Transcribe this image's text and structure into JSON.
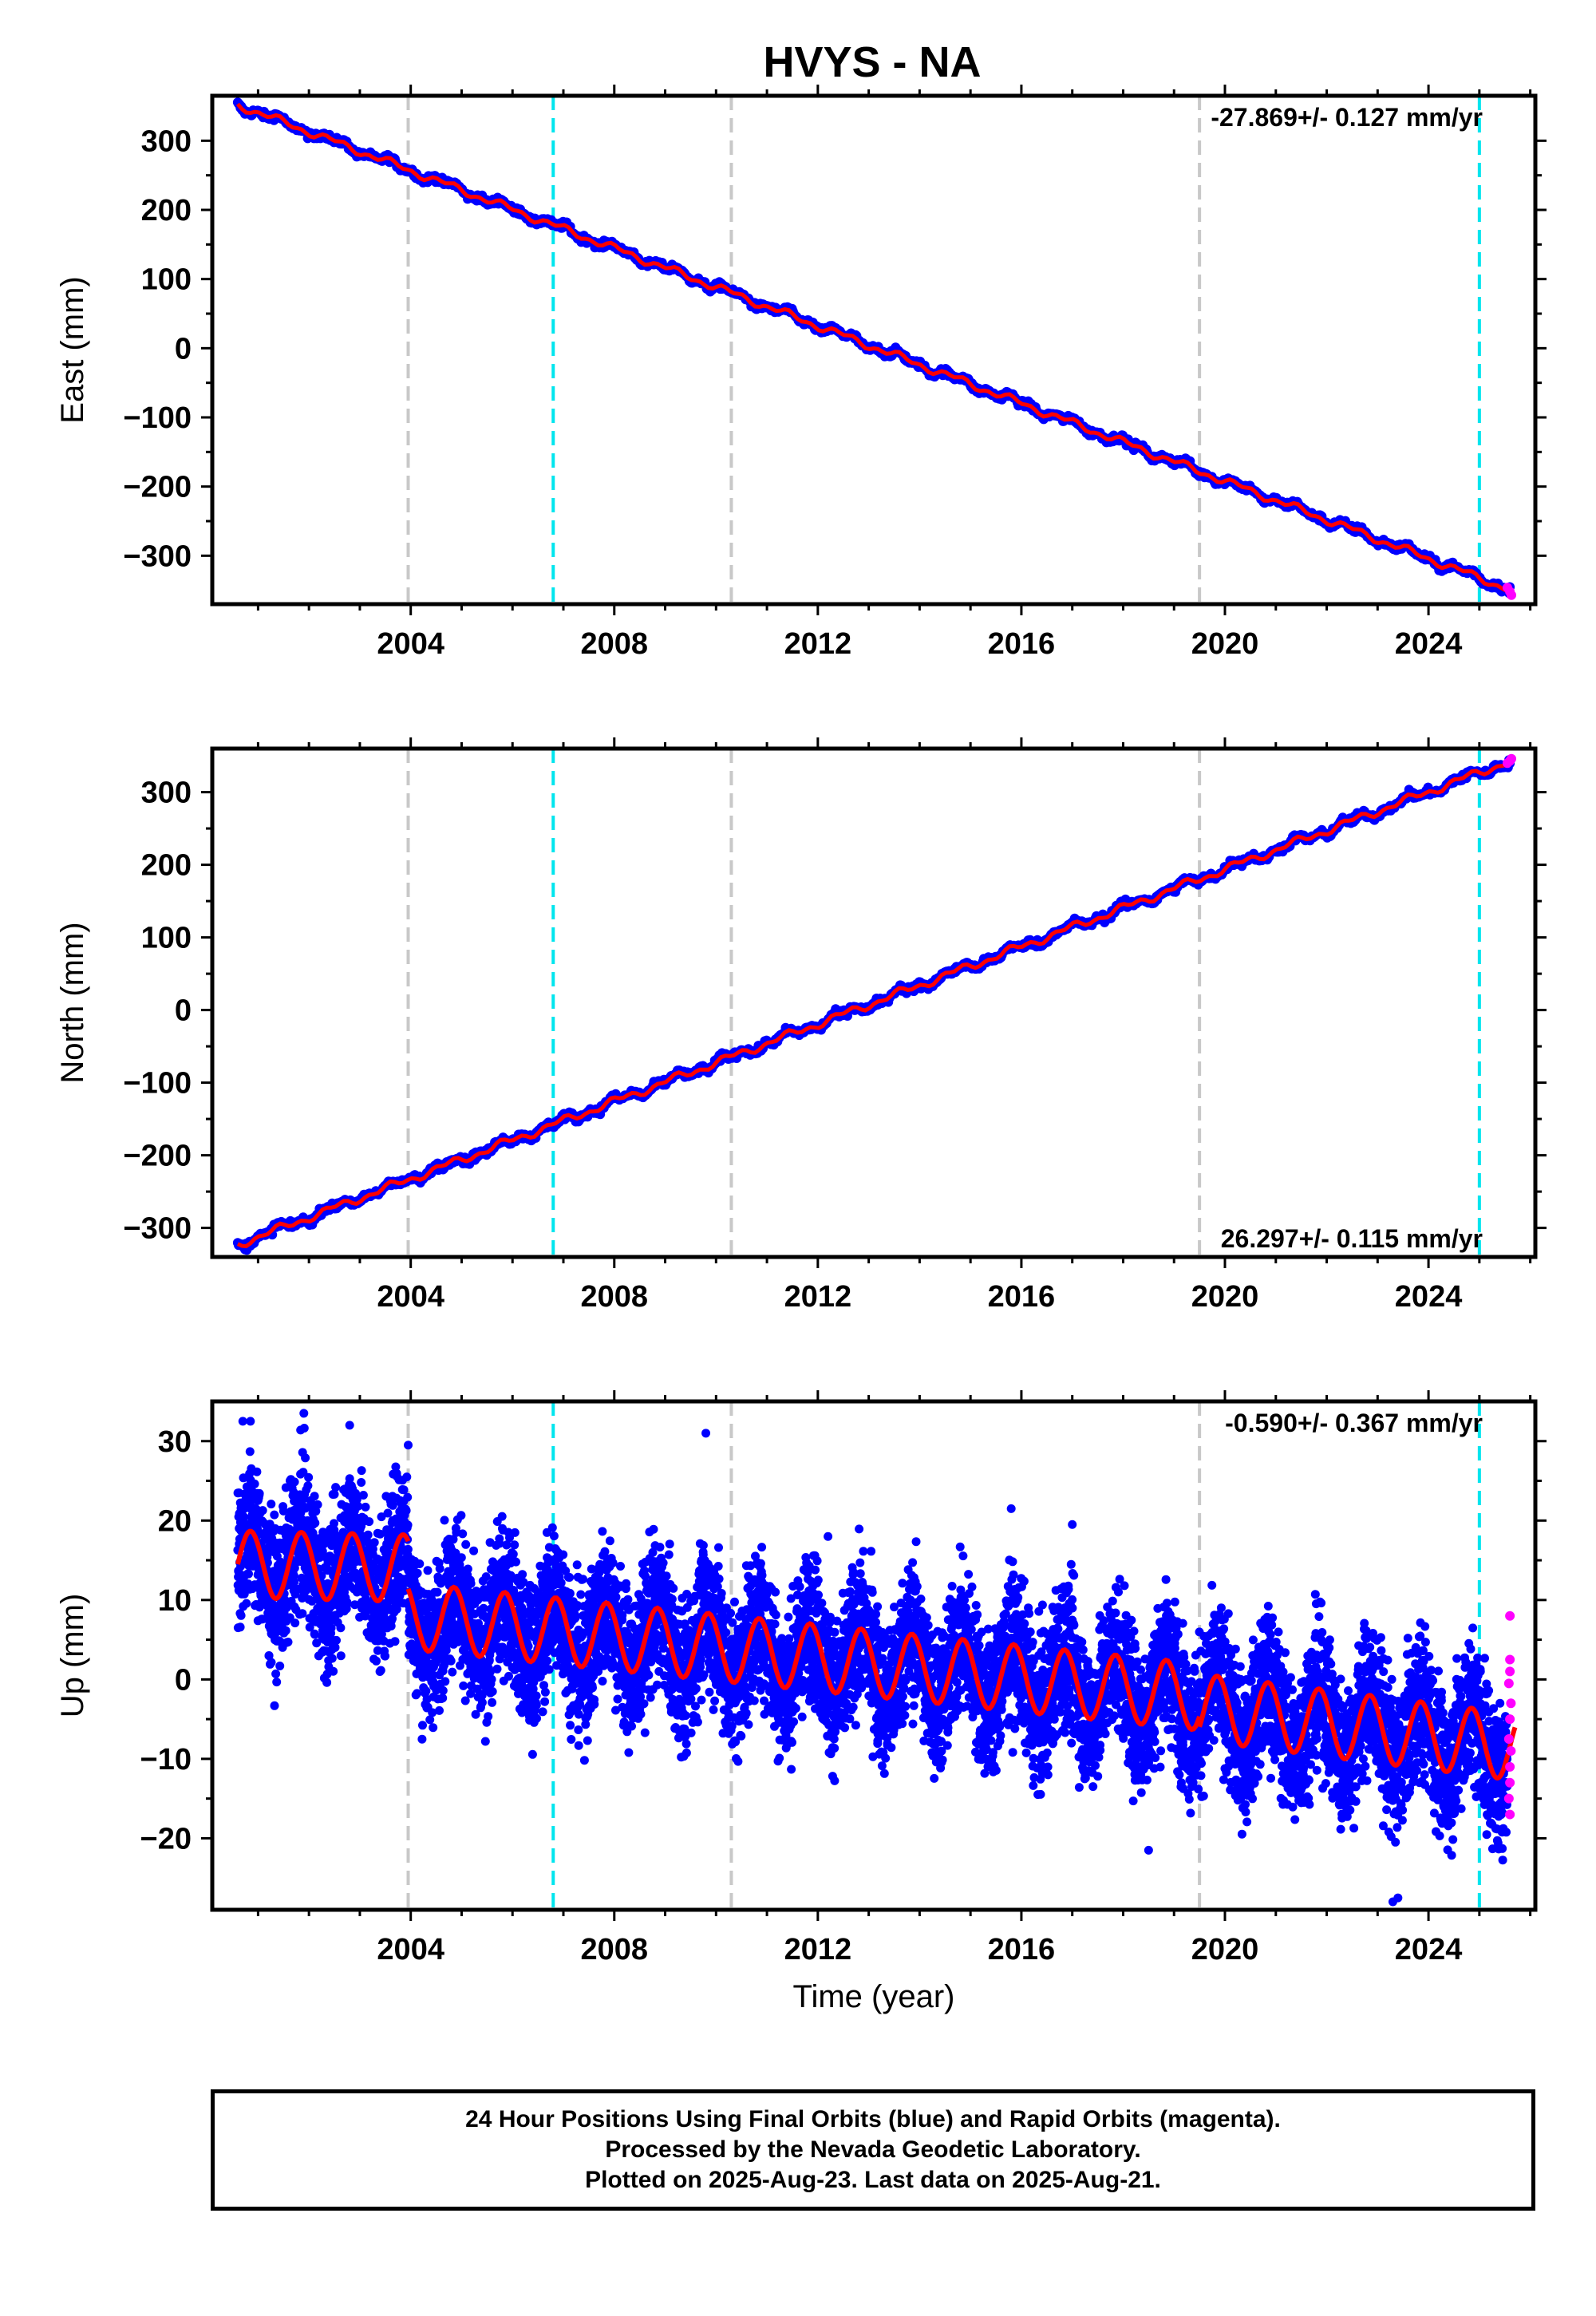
{
  "title": "HVYS - NA",
  "colors": {
    "final_orbits": "#0000ff",
    "rapid_orbits": "#ff00ff",
    "model": "#ff0000",
    "equipment_change": "#00e5ee",
    "other_event": "#c8c8c8",
    "frame": "#000000"
  },
  "footer": {
    "line1": "24 Hour Positions Using Final Orbits (blue) and Rapid Orbits (magenta).",
    "line2": "Processed by the Nevada Geodetic Laboratory.",
    "line3": "Plotted on 2025-Aug-23. Last data on 2025-Aug-21."
  },
  "chart_data": [
    {
      "type": "scatter",
      "component": "east",
      "ylabel": "East (mm)",
      "xlabel": "",
      "xlim": [
        2000.1,
        2026.1
      ],
      "ylim": [
        -370,
        365
      ],
      "xticks": [
        2004,
        2008,
        2012,
        2016,
        2020,
        2024
      ],
      "yticks": [
        -300,
        -200,
        -100,
        0,
        100,
        200,
        300
      ],
      "rate_label": "-27.869+/- 0.127 mm/yr",
      "rate_label_position": "top-right",
      "start": {
        "x": 2000.6,
        "y": 352
      },
      "end": {
        "x": 2025.6,
        "y": -349
      },
      "rapid_points": [
        {
          "x": 2025.55,
          "y": -346
        },
        {
          "x": 2025.6,
          "y": -352
        },
        {
          "x": 2025.63,
          "y": -357
        }
      ],
      "gray_lines": [
        2003.95,
        2010.3,
        2019.5
      ],
      "cyan_lines": [
        2006.8,
        2025.0
      ]
    },
    {
      "type": "scatter",
      "component": "north",
      "ylabel": "North (mm)",
      "xlabel": "",
      "xlim": [
        2000.1,
        2026.1
      ],
      "ylim": [
        -340,
        360
      ],
      "xticks": [
        2004,
        2008,
        2012,
        2016,
        2020,
        2024
      ],
      "yticks": [
        -300,
        -200,
        -100,
        0,
        100,
        200,
        300
      ],
      "rate_label": "26.297+/- 0.115 mm/yr",
      "rate_label_position": "bottom-right",
      "start": {
        "x": 2000.6,
        "y": -323
      },
      "end": {
        "x": 2025.6,
        "y": 343
      },
      "rapid_points": [
        {
          "x": 2025.55,
          "y": 340
        },
        {
          "x": 2025.6,
          "y": 343
        },
        {
          "x": 2025.63,
          "y": 346
        }
      ],
      "gray_lines": [
        2003.95,
        2010.3,
        2019.5
      ],
      "cyan_lines": [
        2006.8,
        2025.0
      ]
    },
    {
      "type": "scatter",
      "component": "up",
      "ylabel": "Up (mm)",
      "xlabel": "Time (year)",
      "xlim": [
        2000.1,
        2026.1
      ],
      "ylim": [
        -29,
        35
      ],
      "xticks": [
        2004,
        2008,
        2012,
        2016,
        2020,
        2024
      ],
      "yticks": [
        -20,
        -10,
        0,
        10,
        20,
        30
      ],
      "rate_label": "-0.590+/- 0.367 mm/yr",
      "rate_label_position": "top-right",
      "model_segments": [
        {
          "x0": 2000.6,
          "x1": 2003.95,
          "y0": 14.5,
          "y1": 14.0
        },
        {
          "x0": 2003.95,
          "x1": 2019.5,
          "y0": 8.0,
          "y1": -2.2
        },
        {
          "x0": 2019.5,
          "x1": 2025.7,
          "y0": -3.5,
          "y1": -8.5
        }
      ],
      "seasonal_amplitude": 4.2,
      "scatter_spread": 4.5,
      "rapid_points": [
        {
          "x": 2025.6,
          "y": 8
        },
        {
          "x": 2025.6,
          "y": 2.5
        },
        {
          "x": 2025.6,
          "y": 1
        },
        {
          "x": 2025.58,
          "y": -0.5
        },
        {
          "x": 2025.62,
          "y": -3
        },
        {
          "x": 2025.6,
          "y": -5
        },
        {
          "x": 2025.58,
          "y": -7.5
        },
        {
          "x": 2025.62,
          "y": -9
        },
        {
          "x": 2025.6,
          "y": -11
        },
        {
          "x": 2025.6,
          "y": -13
        },
        {
          "x": 2025.58,
          "y": -15
        },
        {
          "x": 2025.6,
          "y": -17
        }
      ],
      "outliers": [
        {
          "x": 2000.7,
          "y": 32.5
        },
        {
          "x": 2000.85,
          "y": 32.5
        },
        {
          "x": 2001.9,
          "y": 33.5
        },
        {
          "x": 2002.8,
          "y": 32.0
        },
        {
          "x": 2003.95,
          "y": 29.5
        },
        {
          "x": 2009.8,
          "y": 31.0
        },
        {
          "x": 2015.8,
          "y": 21.5
        },
        {
          "x": 2017.0,
          "y": 19.5
        },
        {
          "x": 2023.3,
          "y": -28.0
        },
        {
          "x": 2023.4,
          "y": -27.5
        },
        {
          "x": 2018.5,
          "y": -21.5
        },
        {
          "x": 2012.2,
          "y": 18.0
        }
      ],
      "gray_lines": [
        2003.95,
        2010.3,
        2019.5
      ],
      "cyan_lines": [
        2006.8,
        2025.0
      ]
    }
  ]
}
